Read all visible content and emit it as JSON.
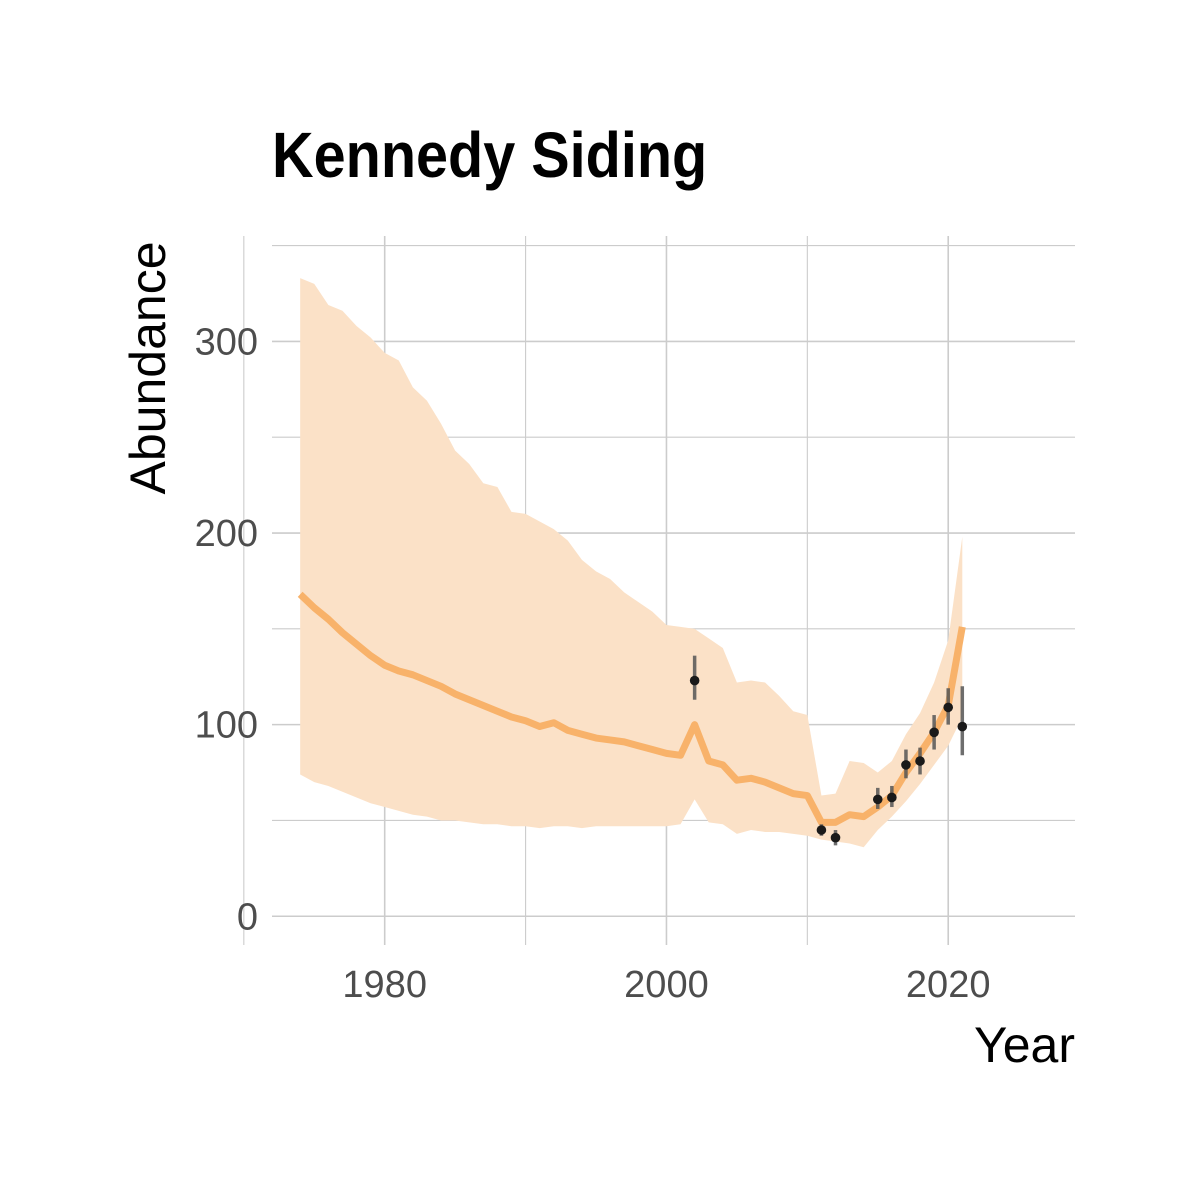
{
  "chart_data": {
    "type": "line",
    "title": "Kennedy Siding",
    "xlabel": "Year",
    "ylabel": "Abundance",
    "xlim": [
      1972,
      2029
    ],
    "ylim": [
      -15,
      355
    ],
    "x_ticks": [
      1980,
      2000,
      2020
    ],
    "y_ticks": [
      0,
      100,
      200,
      300
    ],
    "grid": true,
    "colors": {
      "fit_line": "#f8b26a",
      "ribbon": "#fbe1c7",
      "points": "#1a1a1a",
      "error_bars": "#555555",
      "grid": "#cccccc"
    },
    "series": [
      {
        "role": "model-estimate",
        "x": [
          1974,
          1975,
          1976,
          1977,
          1978,
          1979,
          1980,
          1981,
          1982,
          1983,
          1984,
          1985,
          1986,
          1987,
          1988,
          1989,
          1990,
          1991,
          1992,
          1993,
          1994,
          1995,
          1996,
          1997,
          1998,
          1999,
          2000,
          2001,
          2002,
          2003,
          2004,
          2005,
          2006,
          2007,
          2008,
          2009,
          2010,
          2011,
          2012,
          2013,
          2014,
          2015,
          2016,
          2017,
          2018,
          2019,
          2020,
          2021
        ],
        "y": [
          168,
          161,
          155,
          148,
          142,
          136,
          131,
          128,
          126,
          123,
          120,
          116,
          113,
          110,
          107,
          104,
          102,
          99,
          101,
          97,
          95,
          93,
          92,
          91,
          89,
          87,
          85,
          84,
          100,
          81,
          79,
          71,
          72,
          70,
          67,
          64,
          63,
          49,
          49,
          53,
          52,
          57,
          63,
          75,
          85,
          96,
          110,
          151
        ],
        "upper": [
          333,
          330,
          319,
          316,
          308,
          302,
          294,
          290,
          276,
          269,
          257,
          243,
          236,
          226,
          224,
          211,
          210,
          206,
          202,
          196,
          186,
          180,
          176,
          169,
          164,
          159,
          152,
          151,
          150,
          145,
          140,
          122,
          123,
          122,
          115,
          107,
          105,
          63,
          64,
          81,
          80,
          75,
          81,
          95,
          106,
          122,
          144,
          198
        ],
        "lower": [
          74,
          70,
          68,
          65,
          62,
          59,
          57,
          55,
          53,
          52,
          50,
          50,
          49,
          48,
          48,
          47,
          47,
          46,
          47,
          47,
          46,
          47,
          47,
          47,
          47,
          47,
          47,
          48,
          61,
          49,
          48,
          43,
          45,
          44,
          44,
          43,
          42,
          40,
          39,
          38,
          36,
          45,
          52,
          60,
          69,
          79,
          89,
          104
        ]
      }
    ],
    "observations": [
      {
        "x": 2002,
        "y": 123,
        "low": 113,
        "high": 136
      },
      {
        "x": 2011,
        "y": 45,
        "low": 42,
        "high": 48
      },
      {
        "x": 2012,
        "y": 41,
        "low": 37,
        "high": 45
      },
      {
        "x": 2015,
        "y": 61,
        "low": 56,
        "high": 67
      },
      {
        "x": 2016,
        "y": 62,
        "low": 57,
        "high": 68
      },
      {
        "x": 2017,
        "y": 79,
        "low": 72,
        "high": 87
      },
      {
        "x": 2018,
        "y": 81,
        "low": 74,
        "high": 88
      },
      {
        "x": 2019,
        "y": 96,
        "low": 87,
        "high": 105
      },
      {
        "x": 2020,
        "y": 109,
        "low": 100,
        "high": 119
      },
      {
        "x": 2021,
        "y": 99,
        "low": 84,
        "high": 120
      }
    ]
  }
}
